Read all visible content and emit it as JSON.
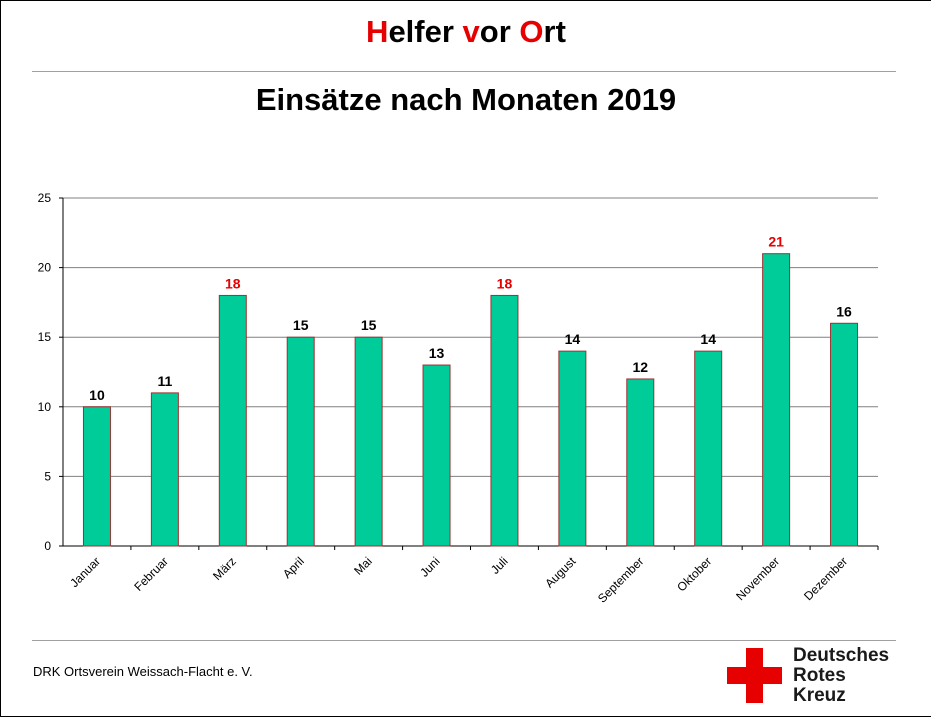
{
  "header": {
    "title_parts": [
      {
        "text": "H",
        "highlight": true
      },
      {
        "text": "elfer ",
        "highlight": false
      },
      {
        "text": "v",
        "highlight": true
      },
      {
        "text": "or ",
        "highlight": false
      },
      {
        "text": "O",
        "highlight": true
      },
      {
        "text": "rt",
        "highlight": false
      }
    ]
  },
  "colors": {
    "accent_red": "#e60000",
    "bar_fill": "#00cc99",
    "bar_stroke": "#993333",
    "gridline": "#808080"
  },
  "chart_data": {
    "type": "bar",
    "title": "Einsätze nach Monaten 2019",
    "xlabel": "",
    "ylabel": "",
    "categories": [
      "Januar",
      "Februar",
      "März",
      "April",
      "Mai",
      "Juni",
      "Juli",
      "August",
      "September",
      "Oktober",
      "November",
      "Dezember"
    ],
    "values": [
      10,
      11,
      18,
      15,
      15,
      13,
      18,
      14,
      12,
      14,
      21,
      16
    ],
    "value_label_colors": [
      "#000000",
      "#000000",
      "#e60000",
      "#000000",
      "#000000",
      "#000000",
      "#e60000",
      "#000000",
      "#000000",
      "#000000",
      "#e60000",
      "#000000"
    ],
    "ylim": [
      0,
      25
    ],
    "yticks": [
      0,
      5,
      10,
      15,
      20,
      25
    ],
    "grid": true,
    "legend": "none"
  },
  "footer": {
    "organization": "DRK Ortsverein Weissach-Flacht e. V.",
    "logo_lines": [
      "Deutsches",
      "Rotes",
      "Kreuz"
    ],
    "logo_icon": "red-cross-icon"
  }
}
